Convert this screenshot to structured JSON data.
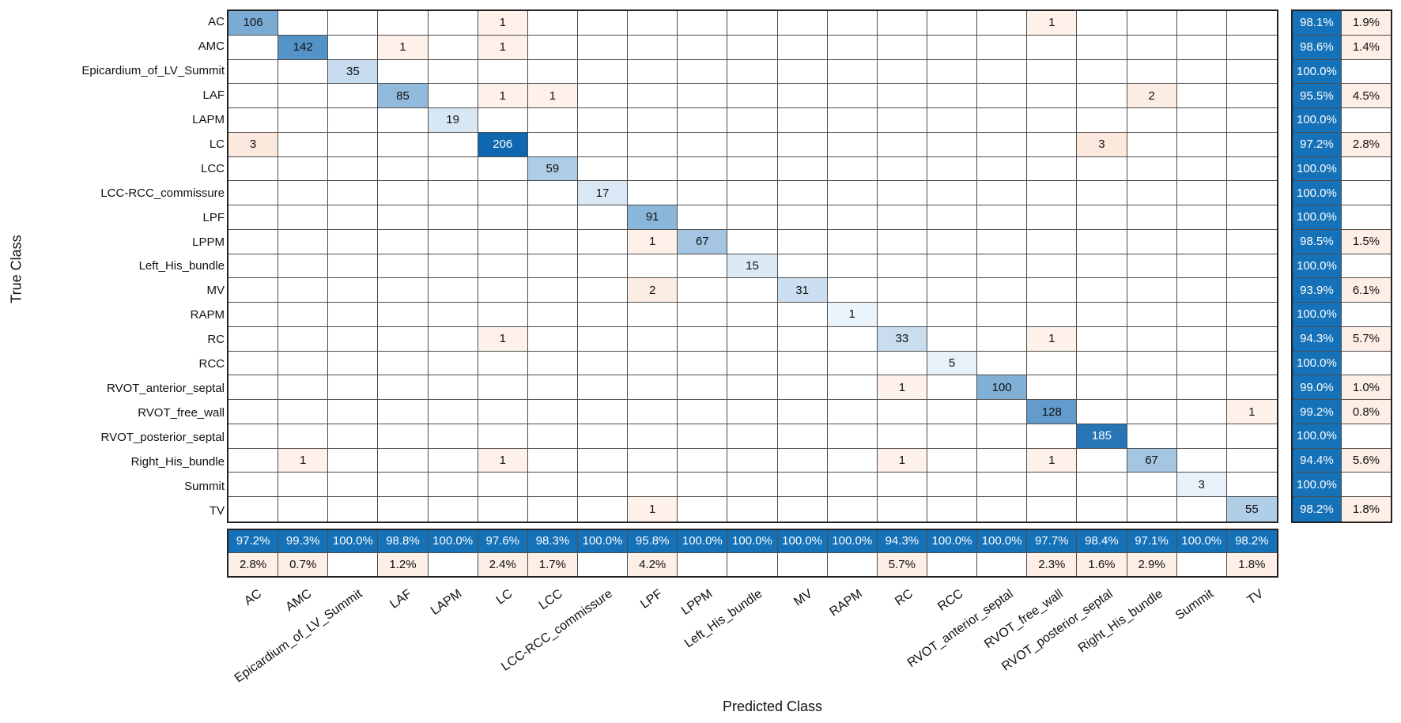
{
  "chart_data": {
    "type": "heatmap",
    "subtype": "confusion_matrix",
    "xlabel": "Predicted Class",
    "ylabel": "True Class",
    "grid": "on",
    "classes": [
      "AC",
      "AMC",
      "Epicardium_of_LV_Summit",
      "LAF",
      "LAPM",
      "LC",
      "LCC",
      "LCC-RCC_commissure",
      "LPF",
      "LPPM",
      "Left_His_bundle",
      "MV",
      "RAPM",
      "RC",
      "RCC",
      "RVOT_anterior_septal",
      "RVOT_free_wall",
      "RVOT_posterior_septal",
      "Right_His_bundle",
      "Summit",
      "TV"
    ],
    "cells": [
      [
        1,
        1,
        106
      ],
      [
        1,
        6,
        1
      ],
      [
        1,
        17,
        1
      ],
      [
        2,
        2,
        142
      ],
      [
        2,
        4,
        1
      ],
      [
        2,
        6,
        1
      ],
      [
        3,
        3,
        35
      ],
      [
        4,
        4,
        85
      ],
      [
        4,
        6,
        1
      ],
      [
        4,
        7,
        1
      ],
      [
        4,
        19,
        2
      ],
      [
        5,
        5,
        19
      ],
      [
        6,
        1,
        3
      ],
      [
        6,
        6,
        206
      ],
      [
        6,
        18,
        3
      ],
      [
        7,
        7,
        59
      ],
      [
        8,
        8,
        17
      ],
      [
        9,
        9,
        91
      ],
      [
        10,
        9,
        1
      ],
      [
        10,
        10,
        67
      ],
      [
        11,
        11,
        15
      ],
      [
        12,
        9,
        2
      ],
      [
        12,
        12,
        31
      ],
      [
        13,
        13,
        1
      ],
      [
        14,
        6,
        1
      ],
      [
        14,
        14,
        33
      ],
      [
        14,
        17,
        1
      ],
      [
        15,
        15,
        5
      ],
      [
        16,
        14,
        1
      ],
      [
        16,
        16,
        100
      ],
      [
        17,
        17,
        128
      ],
      [
        17,
        21,
        1
      ],
      [
        18,
        18,
        185
      ],
      [
        19,
        2,
        1
      ],
      [
        19,
        6,
        1
      ],
      [
        19,
        14,
        1
      ],
      [
        19,
        17,
        1
      ],
      [
        19,
        19,
        67
      ],
      [
        20,
        20,
        3
      ],
      [
        21,
        9,
        1
      ],
      [
        21,
        21,
        55
      ]
    ],
    "max_diagonal": 206,
    "row_summary": {
      "tpr": [
        "98.1%",
        "98.6%",
        "100.0%",
        "95.5%",
        "100.0%",
        "97.2%",
        "100.0%",
        "100.0%",
        "100.0%",
        "98.5%",
        "100.0%",
        "93.9%",
        "100.0%",
        "94.3%",
        "100.0%",
        "99.0%",
        "99.2%",
        "100.0%",
        "94.4%",
        "100.0%",
        "98.2%"
      ],
      "fnr": [
        "1.9%",
        "1.4%",
        null,
        "4.5%",
        null,
        "2.8%",
        null,
        null,
        null,
        "1.5%",
        null,
        "6.1%",
        null,
        "5.7%",
        null,
        "1.0%",
        "0.8%",
        null,
        "5.6%",
        null,
        "1.8%"
      ]
    },
    "col_summary": {
      "ppv": [
        "97.2%",
        "99.3%",
        "100.0%",
        "98.8%",
        "100.0%",
        "97.6%",
        "98.3%",
        "100.0%",
        "95.8%",
        "100.0%",
        "100.0%",
        "100.0%",
        "100.0%",
        "94.3%",
        "100.0%",
        "100.0%",
        "97.7%",
        "98.4%",
        "97.1%",
        "100.0%",
        "98.2%"
      ],
      "fdr": [
        "2.8%",
        "0.7%",
        null,
        "1.2%",
        null,
        "2.4%",
        "1.7%",
        null,
        "4.2%",
        null,
        null,
        null,
        null,
        "5.7%",
        null,
        null,
        "2.3%",
        "1.6%",
        "2.9%",
        null,
        "1.8%"
      ]
    },
    "colors": {
      "diag_light": "#ecf4fb",
      "diag_dark": "#0f67af",
      "offdiag_pink": "#fdf1ea",
      "summary_blue": "#1571b8",
      "summary_pink": "#fdeee6",
      "grid_line": "#4d4d4d",
      "frame": "#222222",
      "text_dark": "#111111",
      "text_light": "#ffffff"
    }
  }
}
